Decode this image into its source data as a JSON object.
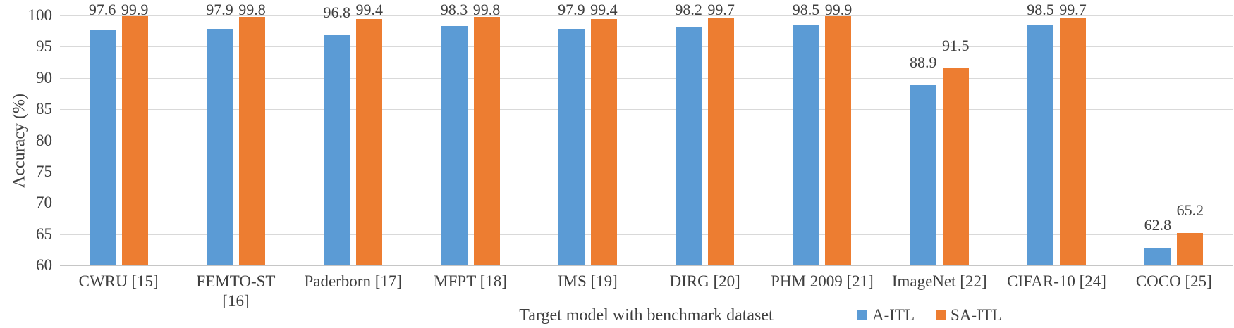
{
  "figure": {
    "y_axis_title": "Accuracy (%)",
    "x_axis_title": "Target model with benchmark dataset"
  },
  "colors": {
    "series_a": "#5B9BD5",
    "series_b": "#ED7D31",
    "gridline": "#D9D9D9",
    "axis_line": "#C6C6C6",
    "text": "#3F3F3F"
  },
  "chart_data": {
    "type": "bar",
    "title": "",
    "xlabel": "Target model with benchmark dataset",
    "ylabel": "Accuracy (%)",
    "ylim": [
      60,
      100
    ],
    "yticks": [
      60,
      65,
      70,
      75,
      80,
      85,
      90,
      95,
      100
    ],
    "grid": true,
    "legend_position": "bottom-right",
    "categories": [
      "CWRU [15]",
      "FEMTO-ST [16]",
      "Paderborn [17]",
      "MFPT [18]",
      "IMS [19]",
      "DIRG [20]",
      "PHM 2009 [21]",
      "ImageNet [22]",
      "CIFAR-10 [24]",
      "COCO [25]"
    ],
    "category_label_lines": [
      [
        "CWRU [15]"
      ],
      [
        "FEMTO-ST",
        "[16]"
      ],
      [
        "Paderborn [17]"
      ],
      [
        "MFPT [18]"
      ],
      [
        "IMS [19]"
      ],
      [
        "DIRG [20]"
      ],
      [
        "PHM 2009 [21]"
      ],
      [
        "ImageNet [22]"
      ],
      [
        "CIFAR-10 [24]"
      ],
      [
        "COCO [25]"
      ]
    ],
    "series": [
      {
        "name": "A-ITL",
        "color": "#5B9BD5",
        "values": [
          97.6,
          97.9,
          96.8,
          98.3,
          97.9,
          98.2,
          98.5,
          88.9,
          98.5,
          62.8
        ]
      },
      {
        "name": "SA-ITL",
        "color": "#ED7D31",
        "values": [
          99.9,
          99.8,
          99.4,
          99.8,
          99.4,
          99.7,
          99.9,
          91.5,
          99.7,
          65.2
        ]
      }
    ]
  }
}
